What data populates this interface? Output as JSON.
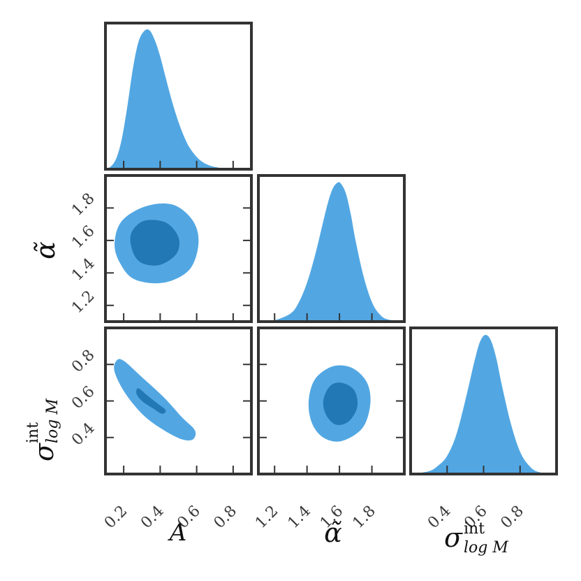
{
  "chart_data": {
    "type": "corner",
    "colors": {
      "fill_outer": "#52a7e3",
      "fill_inner": "#2178b4",
      "frame": "#333333",
      "tick_text": "#3a3a3a"
    },
    "parameters": [
      {
        "key": "A",
        "label": "A",
        "range": [
          0.1,
          0.9
        ],
        "ticks": [
          0.2,
          0.4,
          0.6,
          0.8
        ],
        "tick_labels": [
          "0.2",
          "0.4",
          "0.6",
          "0.8"
        ]
      },
      {
        "key": "alpha",
        "label": "α̃",
        "range": [
          1.1,
          2.0
        ],
        "ticks": [
          1.2,
          1.4,
          1.6,
          1.8
        ],
        "tick_labels": [
          "1.2",
          "1.4",
          "1.6",
          "1.8"
        ]
      },
      {
        "key": "sigma",
        "label": "σ",
        "label_sup": "int",
        "label_sub": "log M",
        "range": [
          0.2,
          1.0
        ],
        "ticks": [
          0.4,
          0.6,
          0.8
        ],
        "tick_labels": [
          "0.4",
          "0.6",
          "0.8"
        ]
      }
    ],
    "marginals": [
      {
        "param": "A",
        "x": [
          0.1,
          0.13,
          0.16,
          0.19,
          0.22,
          0.25,
          0.28,
          0.31,
          0.34,
          0.37,
          0.4,
          0.43,
          0.46,
          0.49,
          0.52,
          0.55,
          0.58,
          0.61,
          0.64,
          0.67,
          0.7,
          0.73,
          0.76,
          0.79,
          0.82,
          0.85
        ],
        "density": [
          0.0,
          0.02,
          0.08,
          0.22,
          0.45,
          0.72,
          0.91,
          0.99,
          1.0,
          0.93,
          0.81,
          0.66,
          0.51,
          0.38,
          0.27,
          0.18,
          0.12,
          0.075,
          0.045,
          0.027,
          0.016,
          0.009,
          0.005,
          0.003,
          0.001,
          0.0
        ]
      },
      {
        "param": "alpha",
        "x": [
          1.1,
          1.2,
          1.3,
          1.35,
          1.4,
          1.45,
          1.5,
          1.53,
          1.56,
          1.59,
          1.61,
          1.64,
          1.67,
          1.7,
          1.75,
          1.8,
          1.85,
          1.9,
          2.0
        ],
        "density": [
          0.0,
          0.01,
          0.06,
          0.14,
          0.28,
          0.48,
          0.72,
          0.86,
          0.96,
          1.0,
          0.99,
          0.92,
          0.77,
          0.58,
          0.32,
          0.14,
          0.05,
          0.015,
          0.0
        ]
      },
      {
        "param": "sigma",
        "x": [
          0.2,
          0.3,
          0.35,
          0.4,
          0.45,
          0.5,
          0.55,
          0.58,
          0.61,
          0.64,
          0.67,
          0.7,
          0.75,
          0.8,
          0.85,
          0.9,
          1.0
        ],
        "density": [
          0.0,
          0.02,
          0.06,
          0.13,
          0.28,
          0.53,
          0.81,
          0.95,
          1.0,
          0.96,
          0.83,
          0.64,
          0.36,
          0.16,
          0.06,
          0.015,
          0.0
        ]
      }
    ],
    "contours": [
      {
        "x_param": "A",
        "y_param": "alpha",
        "outer": [
          [
            0.18,
            1.46
          ],
          [
            0.15,
            1.58
          ],
          [
            0.19,
            1.72
          ],
          [
            0.32,
            1.81
          ],
          [
            0.47,
            1.82
          ],
          [
            0.58,
            1.72
          ],
          [
            0.61,
            1.58
          ],
          [
            0.56,
            1.42
          ],
          [
            0.42,
            1.34
          ],
          [
            0.26,
            1.36
          ]
        ],
        "inner": [
          [
            0.25,
            1.53
          ],
          [
            0.24,
            1.64
          ],
          [
            0.31,
            1.72
          ],
          [
            0.43,
            1.71
          ],
          [
            0.5,
            1.62
          ],
          [
            0.49,
            1.52
          ],
          [
            0.4,
            1.45
          ],
          [
            0.3,
            1.46
          ]
        ]
      },
      {
        "x_param": "A",
        "y_param": "sigma",
        "outer": [
          [
            0.16,
            0.82
          ],
          [
            0.2,
            0.82
          ],
          [
            0.3,
            0.73
          ],
          [
            0.42,
            0.62
          ],
          [
            0.52,
            0.51
          ],
          [
            0.59,
            0.44
          ],
          [
            0.58,
            0.39
          ],
          [
            0.52,
            0.39
          ],
          [
            0.42,
            0.44
          ],
          [
            0.31,
            0.52
          ],
          [
            0.21,
            0.64
          ],
          [
            0.15,
            0.76
          ]
        ],
        "inner": [
          [
            0.28,
            0.67
          ],
          [
            0.33,
            0.63
          ],
          [
            0.38,
            0.59
          ],
          [
            0.43,
            0.55
          ],
          [
            0.41,
            0.53
          ],
          [
            0.36,
            0.56
          ],
          [
            0.3,
            0.6
          ],
          [
            0.27,
            0.64
          ]
        ]
      },
      {
        "x_param": "alpha",
        "y_param": "sigma",
        "outer": [
          [
            1.43,
            0.48
          ],
          [
            1.41,
            0.6
          ],
          [
            1.45,
            0.72
          ],
          [
            1.56,
            0.79
          ],
          [
            1.68,
            0.78
          ],
          [
            1.77,
            0.7
          ],
          [
            1.79,
            0.58
          ],
          [
            1.74,
            0.45
          ],
          [
            1.61,
            0.38
          ],
          [
            1.5,
            0.4
          ]
        ],
        "inner": [
          [
            1.52,
            0.52
          ],
          [
            1.5,
            0.6
          ],
          [
            1.54,
            0.68
          ],
          [
            1.61,
            0.7
          ],
          [
            1.69,
            0.66
          ],
          [
            1.71,
            0.57
          ],
          [
            1.66,
            0.49
          ],
          [
            1.58,
            0.47
          ]
        ]
      }
    ]
  }
}
